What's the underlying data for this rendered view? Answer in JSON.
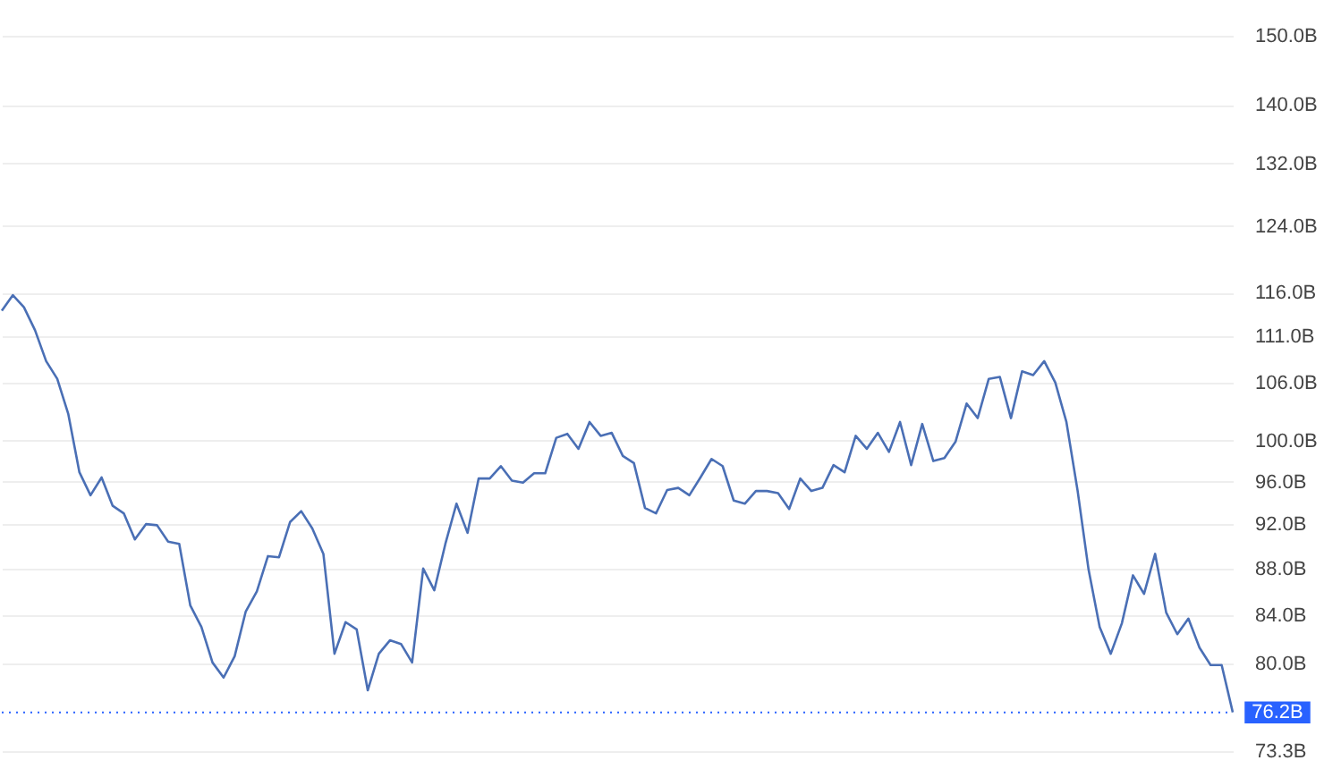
{
  "chart_data": {
    "type": "line",
    "log": "y",
    "grid": "y",
    "categories": [
      null,
      null,
      null,
      null,
      null,
      null,
      null,
      null,
      null,
      null,
      null,
      null,
      null,
      null,
      null,
      null,
      null,
      null,
      null,
      null,
      null,
      null,
      null,
      null,
      null,
      null,
      null,
      null,
      null,
      null,
      null,
      null,
      null,
      null,
      null,
      null,
      null,
      null,
      null,
      null,
      null,
      null,
      null,
      null,
      null,
      null,
      null,
      null,
      null,
      null,
      null,
      null,
      null,
      null,
      null,
      null,
      null,
      null,
      null,
      null,
      null,
      null,
      null,
      null,
      null,
      null,
      null,
      null,
      null,
      null,
      null,
      null,
      null,
      null,
      null,
      null,
      null,
      null,
      null,
      null,
      null,
      null,
      null,
      null,
      null,
      null,
      null,
      null,
      null,
      null,
      null,
      null,
      null,
      null,
      null,
      null,
      null,
      null,
      null,
      null,
      null,
      null,
      null,
      null,
      null,
      null,
      null,
      null,
      null,
      null,
      null,
      null
    ],
    "series": [
      {
        "color": "#4a6fb5",
        "values": [
          113.9,
          115.7,
          114.3,
          111.7,
          108.3,
          106.4,
          102.7,
          96.9,
          94.7,
          96.4,
          93.7,
          93.0,
          90.6,
          92.0,
          91.9,
          90.4,
          90.2,
          84.8,
          83.0,
          80.1,
          78.9,
          80.6,
          84.3,
          86.0,
          89.1,
          89.0,
          92.2,
          93.2,
          91.6,
          89.3,
          80.8,
          83.4,
          82.8,
          77.9,
          80.8,
          81.9,
          81.6,
          80.1,
          88.0,
          86.1,
          90.2,
          93.9,
          91.2,
          96.3,
          96.3,
          97.5,
          96.1,
          95.9,
          96.8,
          96.8,
          100.3,
          100.7,
          99.2,
          101.9,
          100.5,
          100.8,
          98.5,
          97.8,
          93.5,
          93.0,
          95.2,
          95.4,
          94.7,
          96.4,
          98.2,
          97.5,
          94.2,
          93.9,
          95.1,
          95.1,
          94.9,
          93.4,
          96.3,
          95.1,
          95.4,
          97.6,
          96.9,
          100.5,
          99.2,
          100.8,
          98.9,
          101.9,
          97.6,
          101.7,
          98.0,
          98.3,
          99.9,
          103.8,
          102.3,
          106.4,
          106.6,
          102.3,
          107.2,
          106.8,
          108.3,
          106.0,
          101.9,
          95.2,
          87.9,
          83.0,
          80.8,
          83.3,
          87.4,
          85.8,
          89.3,
          84.2,
          82.4,
          83.7,
          81.3,
          79.9,
          79.9,
          76.2
        ]
      }
    ],
    "ylim": [
      73.3,
      150
    ],
    "yticks": [
      {
        "value": 73.3,
        "label": "73.3B"
      },
      {
        "value": 80,
        "label": "80.0B"
      },
      {
        "value": 84,
        "label": "84.0B"
      },
      {
        "value": 88,
        "label": "88.0B"
      },
      {
        "value": 92,
        "label": "92.0B"
      },
      {
        "value": 96,
        "label": "96.0B"
      },
      {
        "value": 100,
        "label": "100.0B"
      },
      {
        "value": 106,
        "label": "106.0B"
      },
      {
        "value": 111,
        "label": "111.0B"
      },
      {
        "value": 116,
        "label": "116.0B"
      },
      {
        "value": 124,
        "label": "124.0B"
      },
      {
        "value": 132,
        "label": "132.0B"
      },
      {
        "value": 140,
        "label": "140.0B"
      },
      {
        "value": 150,
        "label": "150.0B"
      }
    ],
    "ref_lines": [
      {
        "axis": "y",
        "value": 76.2,
        "label": "76.2B",
        "color": "#2962ff",
        "line_style": "dotted"
      }
    ]
  }
}
